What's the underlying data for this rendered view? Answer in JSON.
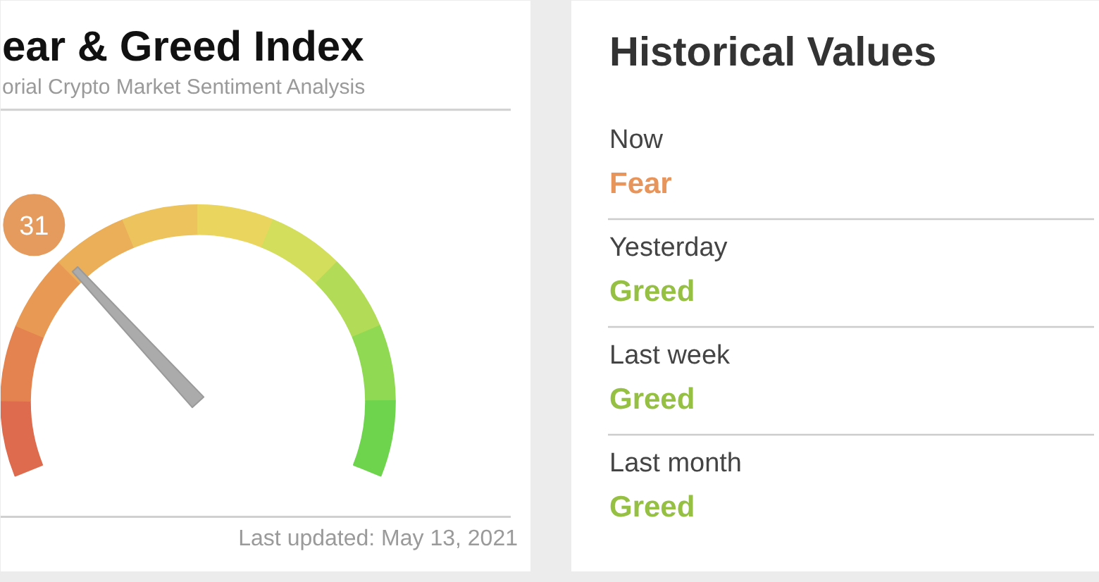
{
  "chart_data": [
    {
      "type": "other",
      "title": "ear & Greed Index",
      "subtitle": "orial Crypto Market Sentiment Analysis",
      "values": [
        31
      ],
      "colors": [
        "#e59b5e"
      ],
      "data_labels": true,
      "annotations": [
        "Last updated: May 13, 2021"
      ]
    },
    {
      "type": "other",
      "title": "Historical Values",
      "categories": [
        "Now",
        "Yesterday",
        "Last week",
        "Last month"
      ],
      "value_labels": [
        "Fear",
        "Greed",
        "Greed",
        "Greed"
      ]
    }
  ]
}
